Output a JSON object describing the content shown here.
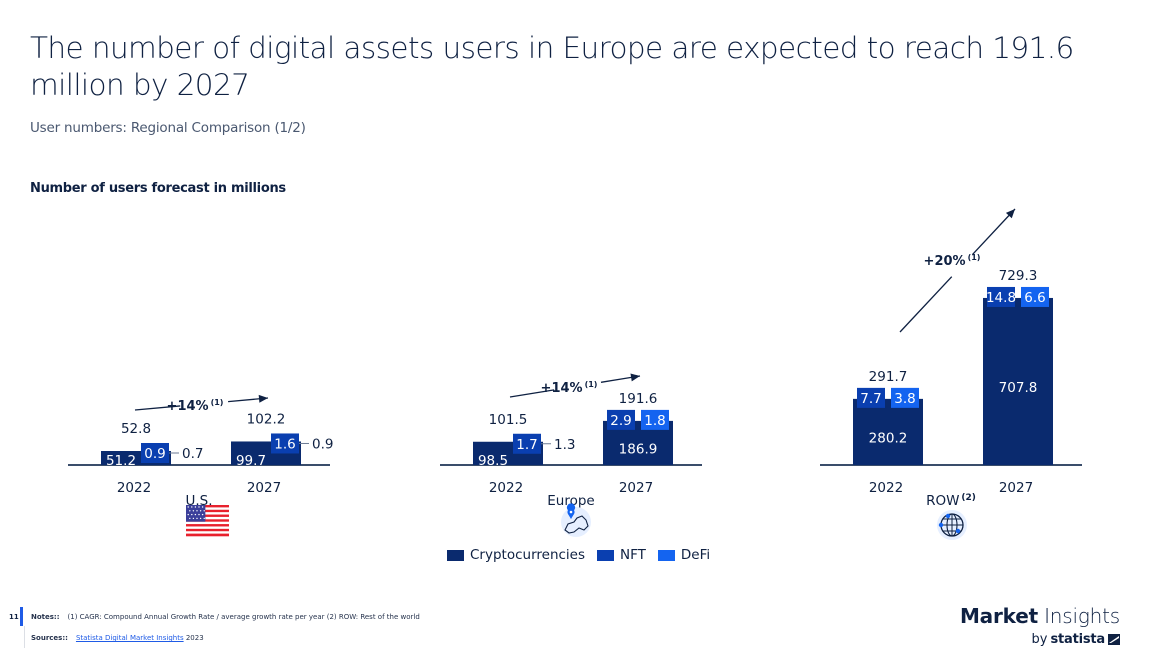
{
  "page": {
    "title": "The number of digital assets users in Europe are expected to reach 191.6 million by 2027",
    "subtitle": "User numbers: Regional Comparison (1/2)",
    "chart_heading": "Number of users forecast in millions",
    "page_number": "11"
  },
  "colors": {
    "crypto": "#0a2a6e",
    "nft": "#0a3fb0",
    "defi": "#1464f0",
    "text": "#0f2142",
    "axis": "#3a4d6b"
  },
  "legend": [
    {
      "label": "Cryptocurrencies",
      "key": "crypto"
    },
    {
      "label": "NFT",
      "key": "nft"
    },
    {
      "label": "DeFi",
      "key": "defi"
    }
  ],
  "footer": {
    "notes_label": "Notes::",
    "notes_text": "(1) CAGR: Compound Annual Growth Rate / average growth rate per year (2) ROW: Rest of the world",
    "sources_label": "Sources::",
    "sources_link": "Statista Digital Market Insights",
    "sources_year": "2023"
  },
  "brand": {
    "market": "Market",
    "insights": "Insights",
    "by": "by",
    "statista": "statista"
  },
  "chart_data": {
    "type": "bar",
    "title": "Number of users forecast in millions",
    "unit": "millions",
    "categories": [
      "2022",
      "2027"
    ],
    "series_names": [
      "Cryptocurrencies",
      "NFT",
      "DeFi"
    ],
    "regions": [
      {
        "name": "U.S.",
        "footnote": "",
        "icon": "us-flag-icon",
        "cagr": "+14%",
        "cagr_note": "(1)",
        "totals": [
          "52.8",
          "102.2"
        ],
        "series": [
          {
            "name": "Cryptocurrencies",
            "values": [
              51.2,
              99.7
            ]
          },
          {
            "name": "NFT",
            "values": [
              0.9,
              1.6
            ]
          },
          {
            "name": "DeFi",
            "values": [
              0.7,
              0.9
            ]
          }
        ]
      },
      {
        "name": "Europe",
        "footnote": "",
        "icon": "europe-map-pin-icon",
        "cagr": "+14%",
        "cagr_note": "(1)",
        "totals": [
          "101.5",
          "191.6"
        ],
        "series": [
          {
            "name": "Cryptocurrencies",
            "values": [
              98.5,
              186.9
            ]
          },
          {
            "name": "NFT",
            "values": [
              1.7,
              2.9
            ]
          },
          {
            "name": "DeFi",
            "values": [
              1.3,
              1.8
            ]
          }
        ]
      },
      {
        "name": "ROW",
        "footnote": "(2)",
        "icon": "globe-network-icon",
        "cagr": "+20%",
        "cagr_note": "(1)",
        "totals": [
          "291.7",
          "729.3"
        ],
        "series": [
          {
            "name": "Cryptocurrencies",
            "values": [
              280.2,
              707.8
            ]
          },
          {
            "name": "NFT",
            "values": [
              7.7,
              14.8
            ]
          },
          {
            "name": "DeFi",
            "values": [
              3.8,
              6.6
            ]
          }
        ]
      }
    ]
  }
}
